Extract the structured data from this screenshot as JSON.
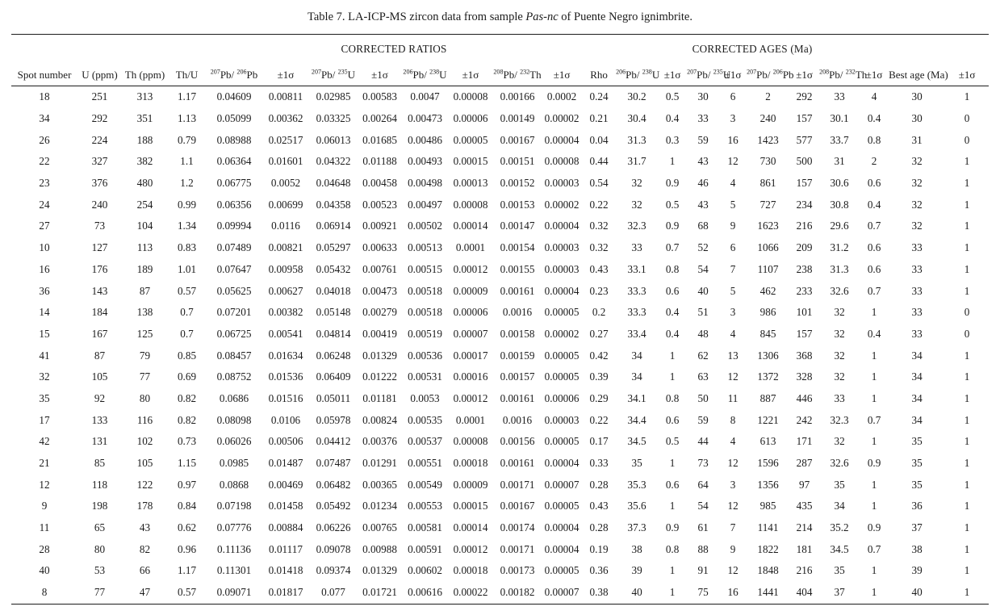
{
  "title": {
    "prefix": "Table 7. LA-ICP-MS zircon data from sample ",
    "sample_italic": "Pas-nc",
    "suffix": " of Puente Negro ignimbrite."
  },
  "table": {
    "group_headers": [
      {
        "label": "",
        "span": 4
      },
      {
        "label": "CORRECTED RATIOS",
        "span": 8
      },
      {
        "label": "",
        "span": 1
      },
      {
        "label": "CORRECTED AGES (Ma)",
        "span": 8
      },
      {
        "label": "",
        "span": 2
      }
    ],
    "columns": [
      {
        "id": "spot",
        "label_parts": [
          {
            "t": "Spot number"
          }
        ]
      },
      {
        "id": "u_ppm",
        "label_parts": [
          {
            "t": "U (ppm)"
          }
        ]
      },
      {
        "id": "th_ppm",
        "label_parts": [
          {
            "t": "Th (ppm)"
          }
        ]
      },
      {
        "id": "th_u",
        "label_parts": [
          {
            "t": "Th/U"
          }
        ]
      },
      {
        "id": "ratio_207pb_206pb",
        "label_parts": [
          {
            "s": "207"
          },
          {
            "t": "Pb/ "
          },
          {
            "s": "206"
          },
          {
            "t": "Pb"
          }
        ]
      },
      {
        "id": "sig_207_206",
        "label_parts": [
          {
            "t": "±1σ"
          }
        ]
      },
      {
        "id": "ratio_207pb_235u",
        "label_parts": [
          {
            "s": "207"
          },
          {
            "t": "Pb/ "
          },
          {
            "s": "235"
          },
          {
            "t": "U"
          }
        ]
      },
      {
        "id": "sig_207_235",
        "label_parts": [
          {
            "t": "±1σ"
          }
        ]
      },
      {
        "id": "ratio_206pb_238u",
        "label_parts": [
          {
            "s": "206"
          },
          {
            "t": "Pb/ "
          },
          {
            "s": "238"
          },
          {
            "t": "U"
          }
        ]
      },
      {
        "id": "sig_206_238",
        "label_parts": [
          {
            "t": "±1σ"
          }
        ]
      },
      {
        "id": "ratio_208pb_232th",
        "label_parts": [
          {
            "s": "208"
          },
          {
            "t": "Pb/ "
          },
          {
            "s": "232"
          },
          {
            "t": "Th"
          }
        ]
      },
      {
        "id": "sig_208_232",
        "label_parts": [
          {
            "t": "±1σ"
          }
        ]
      },
      {
        "id": "rho",
        "label_parts": [
          {
            "t": "Rho"
          }
        ]
      },
      {
        "id": "age_206pb_238u",
        "label_parts": [
          {
            "s": "206"
          },
          {
            "t": "Pb/ "
          },
          {
            "s": "238"
          },
          {
            "t": "U"
          }
        ]
      },
      {
        "id": "sig_age_206_238",
        "label_parts": [
          {
            "t": "±1σ"
          }
        ]
      },
      {
        "id": "age_207pb_235u",
        "label_parts": [
          {
            "s": "207"
          },
          {
            "t": "Pb/ "
          },
          {
            "s": "235"
          },
          {
            "t": "U"
          }
        ]
      },
      {
        "id": "sig_age_207_235",
        "label_parts": [
          {
            "t": "±1σ"
          }
        ]
      },
      {
        "id": "age_207pb_206pb",
        "label_parts": [
          {
            "s": "207"
          },
          {
            "t": "Pb/ "
          },
          {
            "s": "206"
          },
          {
            "t": "Pb"
          }
        ]
      },
      {
        "id": "sig_age_207_206",
        "label_parts": [
          {
            "t": "±1σ"
          }
        ]
      },
      {
        "id": "age_208pb_232th",
        "label_parts": [
          {
            "s": "208"
          },
          {
            "t": "Pb/ "
          },
          {
            "s": "232"
          },
          {
            "t": "Th"
          }
        ]
      },
      {
        "id": "sig_age_208_232",
        "label_parts": [
          {
            "t": "±1σ"
          }
        ]
      },
      {
        "id": "best_age",
        "label_parts": [
          {
            "t": "Best age (Ma)"
          }
        ]
      },
      {
        "id": "sig_best_age",
        "label_parts": [
          {
            "t": "±1σ"
          }
        ]
      }
    ],
    "rows": [
      [
        "18",
        "251",
        "313",
        "1.17",
        "0.04609",
        "0.00811",
        "0.02985",
        "0.00583",
        "0.0047",
        "0.00008",
        "0.00166",
        "0.0002",
        "0.24",
        "30.2",
        "0.5",
        "30",
        "6",
        "2",
        "292",
        "33",
        "4",
        "30",
        "1"
      ],
      [
        "34",
        "292",
        "351",
        "1.13",
        "0.05099",
        "0.00362",
        "0.03325",
        "0.00264",
        "0.00473",
        "0.00006",
        "0.00149",
        "0.00002",
        "0.21",
        "30.4",
        "0.4",
        "33",
        "3",
        "240",
        "157",
        "30.1",
        "0.4",
        "30",
        "0"
      ],
      [
        "26",
        "224",
        "188",
        "0.79",
        "0.08988",
        "0.02517",
        "0.06013",
        "0.01685",
        "0.00486",
        "0.00005",
        "0.00167",
        "0.00004",
        "0.04",
        "31.3",
        "0.3",
        "59",
        "16",
        "1423",
        "577",
        "33.7",
        "0.8",
        "31",
        "0"
      ],
      [
        "22",
        "327",
        "382",
        "1.1",
        "0.06364",
        "0.01601",
        "0.04322",
        "0.01188",
        "0.00493",
        "0.00015",
        "0.00151",
        "0.00008",
        "0.44",
        "31.7",
        "1",
        "43",
        "12",
        "730",
        "500",
        "31",
        "2",
        "32",
        "1"
      ],
      [
        "23",
        "376",
        "480",
        "1.2",
        "0.06775",
        "0.0052",
        "0.04648",
        "0.00458",
        "0.00498",
        "0.00013",
        "0.00152",
        "0.00003",
        "0.54",
        "32",
        "0.9",
        "46",
        "4",
        "861",
        "157",
        "30.6",
        "0.6",
        "32",
        "1"
      ],
      [
        "24",
        "240",
        "254",
        "0.99",
        "0.06356",
        "0.00699",
        "0.04358",
        "0.00523",
        "0.00497",
        "0.00008",
        "0.00153",
        "0.00002",
        "0.22",
        "32",
        "0.5",
        "43",
        "5",
        "727",
        "234",
        "30.8",
        "0.4",
        "32",
        "1"
      ],
      [
        "27",
        "73",
        "104",
        "1.34",
        "0.09994",
        "0.0116",
        "0.06914",
        "0.00921",
        "0.00502",
        "0.00014",
        "0.00147",
        "0.00004",
        "0.32",
        "32.3",
        "0.9",
        "68",
        "9",
        "1623",
        "216",
        "29.6",
        "0.7",
        "32",
        "1"
      ],
      [
        "10",
        "127",
        "113",
        "0.83",
        "0.07489",
        "0.00821",
        "0.05297",
        "0.00633",
        "0.00513",
        "0.0001",
        "0.00154",
        "0.00003",
        "0.32",
        "33",
        "0.7",
        "52",
        "6",
        "1066",
        "209",
        "31.2",
        "0.6",
        "33",
        "1"
      ],
      [
        "16",
        "176",
        "189",
        "1.01",
        "0.07647",
        "0.00958",
        "0.05432",
        "0.00761",
        "0.00515",
        "0.00012",
        "0.00155",
        "0.00003",
        "0.43",
        "33.1",
        "0.8",
        "54",
        "7",
        "1107",
        "238",
        "31.3",
        "0.6",
        "33",
        "1"
      ],
      [
        "36",
        "143",
        "87",
        "0.57",
        "0.05625",
        "0.00627",
        "0.04018",
        "0.00473",
        "0.00518",
        "0.00009",
        "0.00161",
        "0.00004",
        "0.23",
        "33.3",
        "0.6",
        "40",
        "5",
        "462",
        "233",
        "32.6",
        "0.7",
        "33",
        "1"
      ],
      [
        "14",
        "184",
        "138",
        "0.7",
        "0.07201",
        "0.00382",
        "0.05148",
        "0.00279",
        "0.00518",
        "0.00006",
        "0.0016",
        "0.00005",
        "0.2",
        "33.3",
        "0.4",
        "51",
        "3",
        "986",
        "101",
        "32",
        "1",
        "33",
        "0"
      ],
      [
        "15",
        "167",
        "125",
        "0.7",
        "0.06725",
        "0.00541",
        "0.04814",
        "0.00419",
        "0.00519",
        "0.00007",
        "0.00158",
        "0.00002",
        "0.27",
        "33.4",
        "0.4",
        "48",
        "4",
        "845",
        "157",
        "32",
        "0.4",
        "33",
        "0"
      ],
      [
        "41",
        "87",
        "79",
        "0.85",
        "0.08457",
        "0.01634",
        "0.06248",
        "0.01329",
        "0.00536",
        "0.00017",
        "0.00159",
        "0.00005",
        "0.42",
        "34",
        "1",
        "62",
        "13",
        "1306",
        "368",
        "32",
        "1",
        "34",
        "1"
      ],
      [
        "32",
        "105",
        "77",
        "0.69",
        "0.08752",
        "0.01536",
        "0.06409",
        "0.01222",
        "0.00531",
        "0.00016",
        "0.00157",
        "0.00005",
        "0.39",
        "34",
        "1",
        "63",
        "12",
        "1372",
        "328",
        "32",
        "1",
        "34",
        "1"
      ],
      [
        "35",
        "92",
        "80",
        "0.82",
        "0.0686",
        "0.01516",
        "0.05011",
        "0.01181",
        "0.0053",
        "0.00012",
        "0.00161",
        "0.00006",
        "0.29",
        "34.1",
        "0.8",
        "50",
        "11",
        "887",
        "446",
        "33",
        "1",
        "34",
        "1"
      ],
      [
        "17",
        "133",
        "116",
        "0.82",
        "0.08098",
        "0.0106",
        "0.05978",
        "0.00824",
        "0.00535",
        "0.0001",
        "0.0016",
        "0.00003",
        "0.22",
        "34.4",
        "0.6",
        "59",
        "8",
        "1221",
        "242",
        "32.3",
        "0.7",
        "34",
        "1"
      ],
      [
        "42",
        "131",
        "102",
        "0.73",
        "0.06026",
        "0.00506",
        "0.04412",
        "0.00376",
        "0.00537",
        "0.00008",
        "0.00156",
        "0.00005",
        "0.17",
        "34.5",
        "0.5",
        "44",
        "4",
        "613",
        "171",
        "32",
        "1",
        "35",
        "1"
      ],
      [
        "21",
        "85",
        "105",
        "1.15",
        "0.0985",
        "0.01487",
        "0.07487",
        "0.01291",
        "0.00551",
        "0.00018",
        "0.00161",
        "0.00004",
        "0.33",
        "35",
        "1",
        "73",
        "12",
        "1596",
        "287",
        "32.6",
        "0.9",
        "35",
        "1"
      ],
      [
        "12",
        "118",
        "122",
        "0.97",
        "0.0868",
        "0.00469",
        "0.06482",
        "0.00365",
        "0.00549",
        "0.00009",
        "0.00171",
        "0.00007",
        "0.28",
        "35.3",
        "0.6",
        "64",
        "3",
        "1356",
        "97",
        "35",
        "1",
        "35",
        "1"
      ],
      [
        "9",
        "198",
        "178",
        "0.84",
        "0.07198",
        "0.01458",
        "0.05492",
        "0.01234",
        "0.00553",
        "0.00015",
        "0.00167",
        "0.00005",
        "0.43",
        "35.6",
        "1",
        "54",
        "12",
        "985",
        "435",
        "34",
        "1",
        "36",
        "1"
      ],
      [
        "11",
        "65",
        "43",
        "0.62",
        "0.07776",
        "0.00884",
        "0.06226",
        "0.00765",
        "0.00581",
        "0.00014",
        "0.00174",
        "0.00004",
        "0.28",
        "37.3",
        "0.9",
        "61",
        "7",
        "1141",
        "214",
        "35.2",
        "0.9",
        "37",
        "1"
      ],
      [
        "28",
        "80",
        "82",
        "0.96",
        "0.11136",
        "0.01117",
        "0.09078",
        "0.00988",
        "0.00591",
        "0.00012",
        "0.00171",
        "0.00004",
        "0.19",
        "38",
        "0.8",
        "88",
        "9",
        "1822",
        "181",
        "34.5",
        "0.7",
        "38",
        "1"
      ],
      [
        "40",
        "53",
        "66",
        "1.17",
        "0.11301",
        "0.01418",
        "0.09374",
        "0.01329",
        "0.00602",
        "0.00018",
        "0.00173",
        "0.00005",
        "0.36",
        "39",
        "1",
        "91",
        "12",
        "1848",
        "216",
        "35",
        "1",
        "39",
        "1"
      ],
      [
        "8",
        "77",
        "47",
        "0.57",
        "0.09071",
        "0.01817",
        "0.077",
        "0.01721",
        "0.00616",
        "0.00022",
        "0.00182",
        "0.00007",
        "0.38",
        "40",
        "1",
        "75",
        "16",
        "1441",
        "404",
        "37",
        "1",
        "40",
        "1"
      ]
    ]
  }
}
